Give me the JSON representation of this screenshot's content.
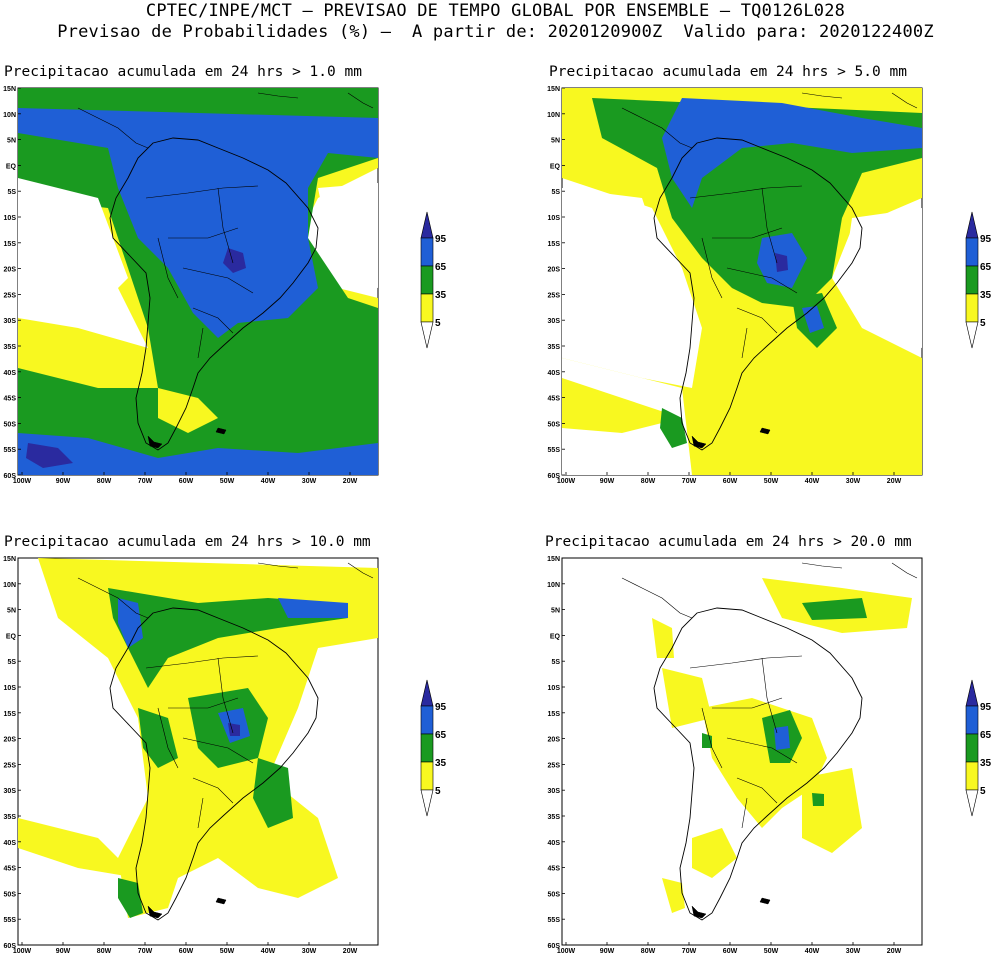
{
  "header": {
    "line1": "CPTEC/INPE/MCT – PREVISAO DE TEMPO GLOBAL POR ENSEMBLE – TQ0126L028",
    "line2": "Previsao de Probabilidades (%) –  A partir de: 2020120900Z  Valido para: 2020122400Z"
  },
  "panels": [
    {
      "title": "Precipitacao acumulada em 24 hrs > 1.0 mm"
    },
    {
      "title": "Precipitacao acumulada em 24 hrs > 5.0 mm"
    },
    {
      "title": "Precipitacao acumulada em 24 hrs > 10.0 mm"
    },
    {
      "title": "Precipitacao acumulada em 24 hrs > 20.0 mm"
    }
  ],
  "axes": {
    "lat_labels": [
      "15N",
      "10N",
      "5N",
      "EQ",
      "5S",
      "10S",
      "15S",
      "20S",
      "25S",
      "30S",
      "35S",
      "40S",
      "45S",
      "50S",
      "55S",
      "60S"
    ],
    "lon_labels": [
      "100W",
      "90W",
      "80W",
      "70W",
      "60W",
      "50W",
      "40W",
      "30W",
      "20W"
    ]
  },
  "colorbar": {
    "labels": [
      "95",
      "65",
      "35",
      "5"
    ],
    "colors": {
      "dark": "#2a2a9f",
      "blue": "#1f5fd6",
      "green": "#1a9a20",
      "yellow": "#f8f820",
      "white": "#ffffff"
    }
  }
}
